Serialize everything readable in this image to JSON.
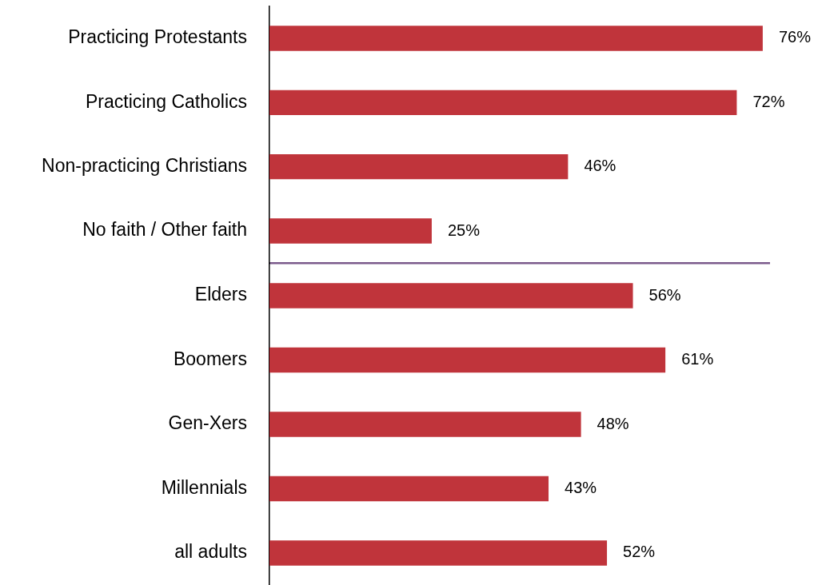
{
  "chart_data": [
    {
      "type": "bar",
      "orientation": "horizontal",
      "categories": [
        "Practicing Protestants",
        "Practicing Catholics",
        "Non-practicing Christians",
        "No faith / Other faith"
      ],
      "values": [
        76,
        72,
        46,
        25
      ],
      "value_labels": [
        "76%",
        "72%",
        "46%",
        "25%"
      ],
      "color": "#c0343b",
      "xlim": [
        0,
        77
      ],
      "tick_labels": "y"
    },
    {
      "type": "bar",
      "orientation": "horizontal",
      "categories": [
        "Elders",
        "Boomers",
        "Gen-Xers",
        "Millennials",
        "all adults"
      ],
      "values": [
        56,
        61,
        48,
        43,
        52
      ],
      "value_labels": [
        "56%",
        "61%",
        "48%",
        "43%",
        "52%"
      ],
      "color": "#c0343b",
      "tick_labels": "y"
    }
  ]
}
